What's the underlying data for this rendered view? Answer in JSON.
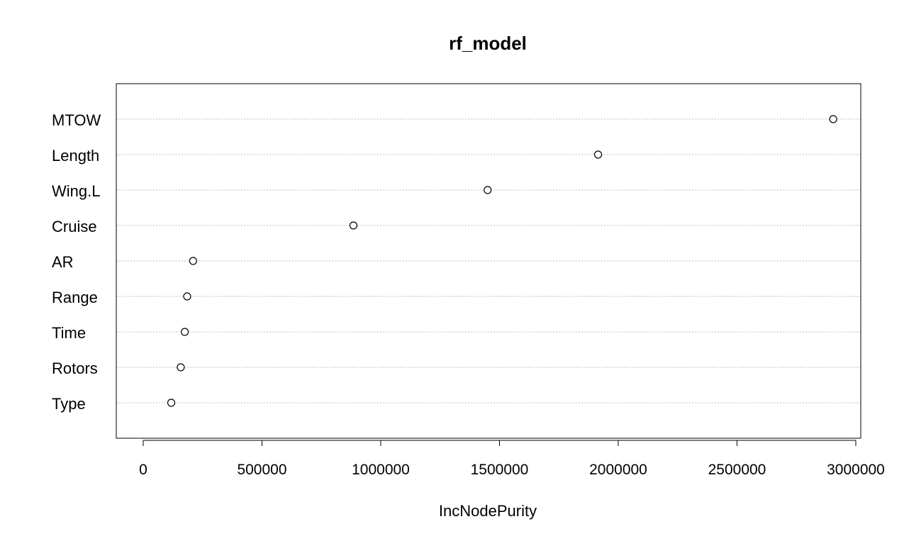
{
  "chart_data": {
    "type": "scatter",
    "title": "rf_model",
    "xlabel": "IncNodePurity",
    "ylabel": "",
    "categories": [
      "MTOW",
      "Length",
      "Wing.L",
      "Cruise",
      "AR",
      "Range",
      "Time",
      "Rotors",
      "Type"
    ],
    "values": [
      2905000,
      1915000,
      1450000,
      885000,
      210000,
      185000,
      175000,
      158000,
      118000
    ],
    "x_ticks": [
      0,
      500000,
      1000000,
      1500000,
      2000000,
      2500000,
      3000000
    ],
    "x_tick_labels": [
      "0",
      "500000",
      "1000000",
      "1500000",
      "2000000",
      "2500000",
      "3000000"
    ],
    "xlim": [
      0,
      3000000
    ],
    "grid": "horizontal dotted",
    "legend": "none"
  }
}
